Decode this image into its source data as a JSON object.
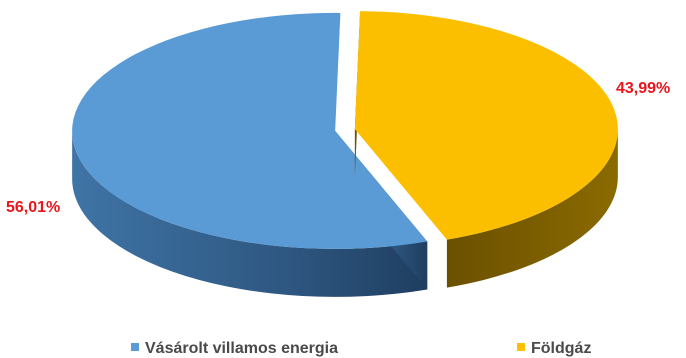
{
  "chart_data": {
    "type": "pie",
    "variant": "3d-exploded",
    "title": "",
    "categories": [
      "Vásárolt villamos energia",
      "Földgáz"
    ],
    "values": [
      56.01,
      43.99
    ],
    "unit": "%",
    "data_labels": [
      "56,01%",
      "43,99%"
    ],
    "colors": [
      "#5b9bd5",
      "#fbbf00"
    ],
    "label_color": "#e8161b",
    "legend": {
      "position": "bottom",
      "entries": [
        "Vásárolt villamos energia",
        "Földgáz"
      ]
    }
  }
}
